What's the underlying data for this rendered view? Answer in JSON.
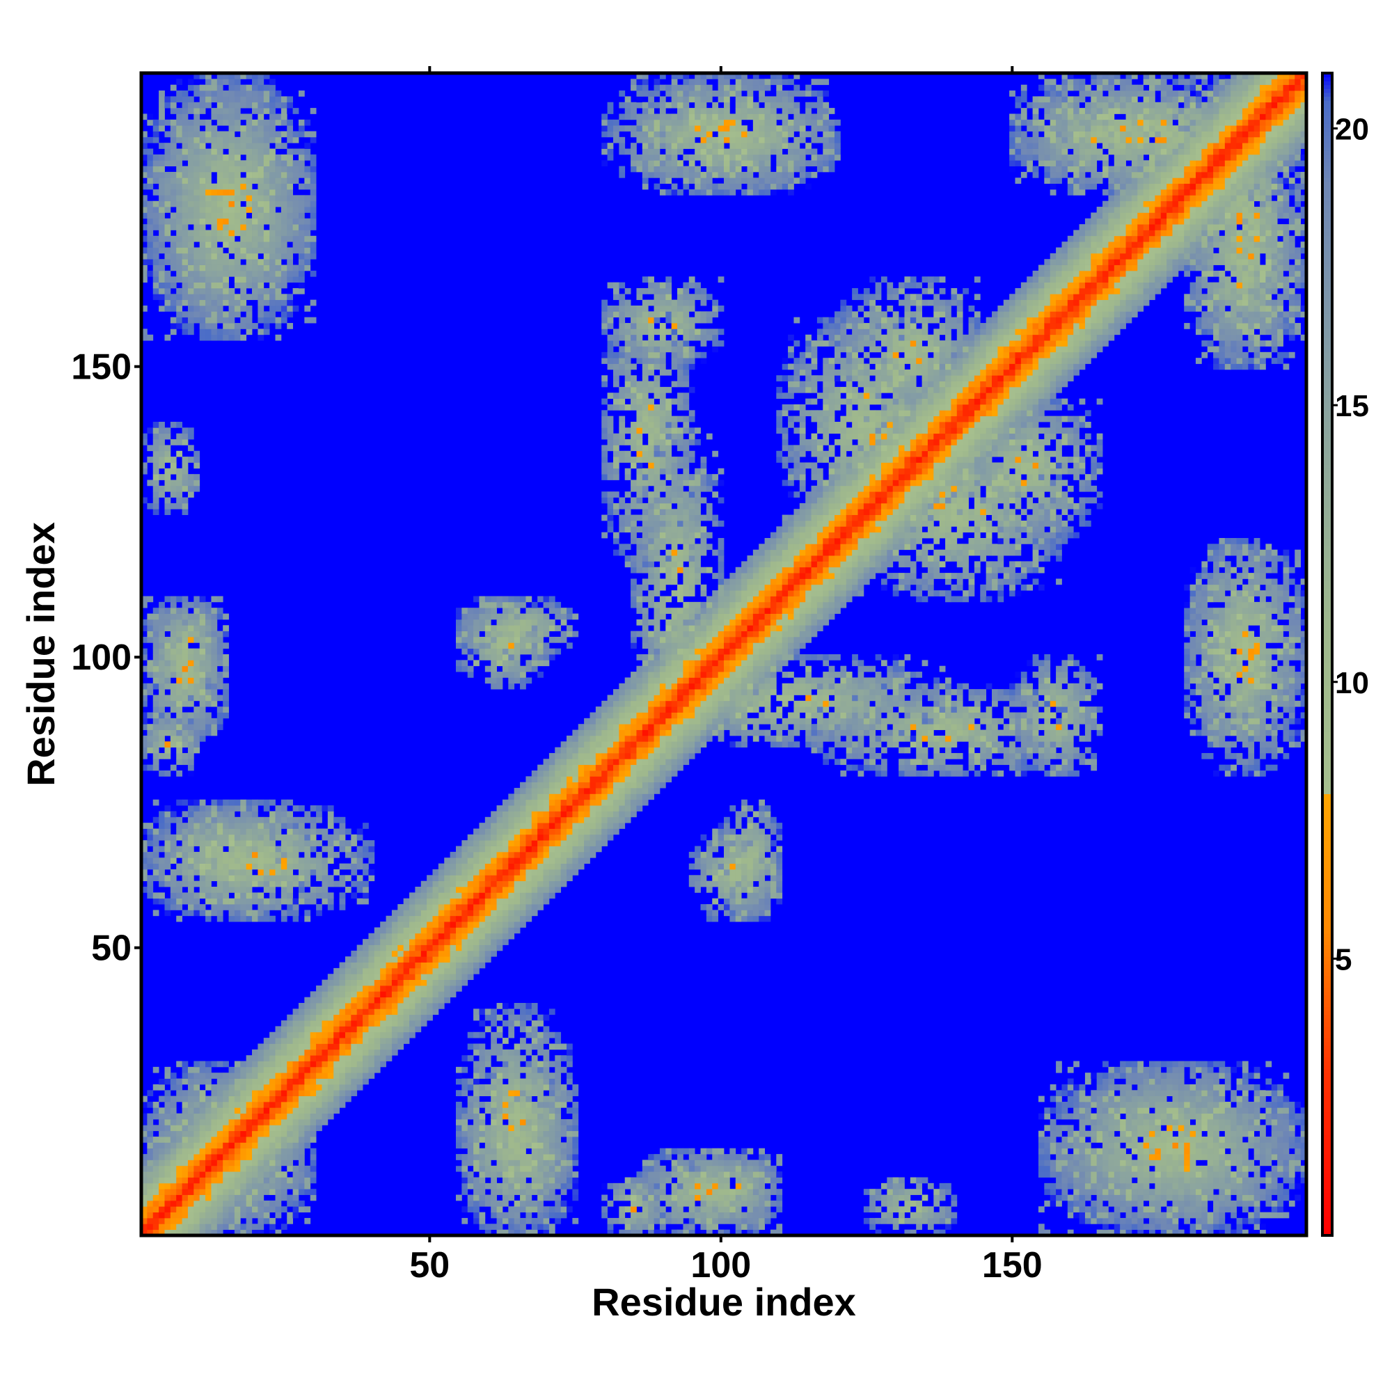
{
  "chart_data": {
    "type": "heatmap",
    "title": "",
    "xlabel": "Residue index",
    "ylabel": "Residue index",
    "n_residues": 200,
    "xlim": [
      1,
      200
    ],
    "ylim": [
      1,
      200
    ],
    "x_ticks": [
      {
        "value": 50,
        "label": "50"
      },
      {
        "value": 100,
        "label": "100"
      },
      {
        "value": 150,
        "label": "150"
      }
    ],
    "y_ticks": [
      {
        "value": 50,
        "label": "50"
      },
      {
        "value": 100,
        "label": "100"
      },
      {
        "value": 150,
        "label": "150"
      }
    ],
    "value_units_note": "",
    "colorbar": {
      "range": [
        0,
        21
      ],
      "cap_value": 21,
      "ticks": [
        {
          "value": 5,
          "label": "5"
        },
        {
          "value": 10,
          "label": "10"
        },
        {
          "value": 15,
          "label": "15"
        },
        {
          "value": 20,
          "label": "20"
        }
      ],
      "stops": [
        {
          "value": 0,
          "color": "#ff0000"
        },
        {
          "value": 3,
          "color": "#ff3300"
        },
        {
          "value": 5.5,
          "color": "#ff8800"
        },
        {
          "value": 8,
          "color": "#ffa500"
        },
        {
          "value": 8.01,
          "color": "#a6bf8e"
        },
        {
          "value": 11,
          "color": "#9fb88d"
        },
        {
          "value": 15,
          "color": "#8aa3a0"
        },
        {
          "value": 19,
          "color": "#6f87b5"
        },
        {
          "value": 20.5,
          "color": "#4a6cc8"
        },
        {
          "value": 21,
          "color": "#0000ff"
        }
      ]
    },
    "contact_regions": [
      {
        "x": [
          1,
          30
        ],
        "y": [
          1,
          30
        ]
      },
      {
        "x": [
          1,
          30
        ],
        "y": [
          55,
          75
        ]
      },
      {
        "x": [
          1,
          15
        ],
        "y": [
          85,
          110
        ]
      },
      {
        "x": [
          1,
          30
        ],
        "y": [
          155,
          200
        ]
      },
      {
        "x": [
          55,
          75
        ],
        "y": [
          1,
          40
        ]
      },
      {
        "x": [
          80,
          90
        ],
        "y": [
          1,
          10
        ]
      },
      {
        "x": [
          93,
          110
        ],
        "y": [
          1,
          15
        ]
      },
      {
        "x": [
          125,
          140
        ],
        "y": [
          1,
          10
        ]
      },
      {
        "x": [
          155,
          200
        ],
        "y": [
          1,
          30
        ]
      },
      {
        "x": [
          55,
          75
        ],
        "y": [
          100,
          110
        ]
      },
      {
        "x": [
          95,
          110
        ],
        "y": [
          55,
          70
        ]
      },
      {
        "x": [
          80,
          95
        ],
        "y": [
          115,
          160
        ]
      },
      {
        "x": [
          85,
          140
        ],
        "y": [
          85,
          100
        ]
      },
      {
        "x": [
          110,
          140
        ],
        "y": [
          120,
          160
        ]
      },
      {
        "x": [
          140,
          165
        ],
        "y": [
          120,
          145
        ]
      },
      {
        "x": [
          150,
          165
        ],
        "y": [
          80,
          100
        ]
      },
      {
        "x": [
          180,
          200
        ],
        "y": [
          80,
          120
        ]
      },
      {
        "x": [
          180,
          200
        ],
        "y": [
          150,
          200
        ]
      },
      {
        "x": [
          85,
          120
        ],
        "y": [
          180,
          200
        ]
      },
      {
        "x": [
          150,
          185
        ],
        "y": [
          180,
          200
        ]
      }
    ]
  }
}
